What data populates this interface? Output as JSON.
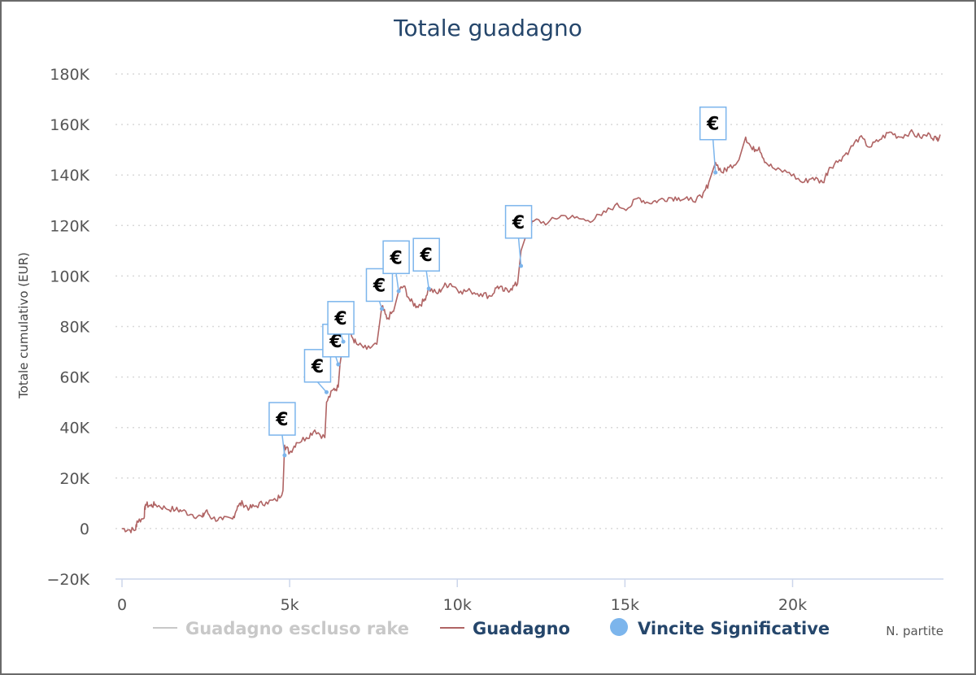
{
  "chart_data": {
    "type": "line",
    "title": "Totale guadagno",
    "xlabel": "N. partite",
    "ylabel": "Totale cumulativo (EUR)",
    "xlim": [
      0,
      24500
    ],
    "ylim": [
      -20000,
      180000
    ],
    "x_ticks": [
      0,
      5000,
      10000,
      15000,
      20000
    ],
    "x_tick_labels": [
      "0",
      "5k",
      "10k",
      "15k",
      "20k"
    ],
    "y_ticks": [
      -20000,
      0,
      20000,
      40000,
      60000,
      80000,
      100000,
      120000,
      140000,
      160000,
      180000
    ],
    "y_tick_labels": [
      "−20K",
      "0",
      "20K",
      "40K",
      "60K",
      "80K",
      "100K",
      "120K",
      "140K",
      "160K",
      "180K"
    ],
    "grid": "horizontal-dotted",
    "legend_position": "bottom",
    "series": [
      {
        "name": "Guadagno escluso rake",
        "color": "#c8c8c8",
        "hidden": true,
        "points": []
      },
      {
        "name": "Guadagno",
        "color": "#b06464",
        "points": [
          [
            0,
            0
          ],
          [
            200,
            -500
          ],
          [
            400,
            -600
          ],
          [
            450,
            3000
          ],
          [
            650,
            4000
          ],
          [
            700,
            9500
          ],
          [
            850,
            9000
          ],
          [
            1000,
            9500
          ],
          [
            1300,
            8000
          ],
          [
            1600,
            7500
          ],
          [
            1800,
            7000
          ],
          [
            2100,
            5500
          ],
          [
            2400,
            4500
          ],
          [
            2500,
            7000
          ],
          [
            2700,
            4000
          ],
          [
            3000,
            3500
          ],
          [
            3300,
            3800
          ],
          [
            3450,
            9000
          ],
          [
            3600,
            10000
          ],
          [
            3800,
            8000
          ],
          [
            4000,
            9000
          ],
          [
            4300,
            10500
          ],
          [
            4600,
            11000
          ],
          [
            4800,
            15000
          ],
          [
            4850,
            33000
          ],
          [
            5000,
            30000
          ],
          [
            5200,
            34000
          ],
          [
            5500,
            36000
          ],
          [
            5750,
            39000
          ],
          [
            6050,
            36000
          ],
          [
            6100,
            50000
          ],
          [
            6300,
            55000
          ],
          [
            6450,
            56000
          ],
          [
            6500,
            65000
          ],
          [
            6600,
            74000
          ],
          [
            6700,
            80000
          ],
          [
            6850,
            76000
          ],
          [
            7000,
            73000
          ],
          [
            7300,
            71000
          ],
          [
            7600,
            73000
          ],
          [
            7750,
            88000
          ],
          [
            7900,
            83000
          ],
          [
            8100,
            86000
          ],
          [
            8250,
            94000
          ],
          [
            8400,
            96000
          ],
          [
            8600,
            90000
          ],
          [
            8800,
            88000
          ],
          [
            9000,
            90000
          ],
          [
            9150,
            95000
          ],
          [
            9400,
            93000
          ],
          [
            9600,
            96000
          ],
          [
            9800,
            97000
          ],
          [
            10100,
            94000
          ],
          [
            10400,
            94000
          ],
          [
            10700,
            93000
          ],
          [
            11000,
            92000
          ],
          [
            11200,
            96000
          ],
          [
            11400,
            94000
          ],
          [
            11600,
            95000
          ],
          [
            11800,
            97000
          ],
          [
            11900,
            110000
          ],
          [
            12100,
            118000
          ],
          [
            12300,
            122000
          ],
          [
            12700,
            121000
          ],
          [
            13100,
            124000
          ],
          [
            13500,
            123000
          ],
          [
            13900,
            122000
          ],
          [
            14300,
            124000
          ],
          [
            14700,
            128000
          ],
          [
            15100,
            127000
          ],
          [
            15400,
            131000
          ],
          [
            15700,
            129000
          ],
          [
            16000,
            130000
          ],
          [
            16300,
            131000
          ],
          [
            16600,
            131000
          ],
          [
            16900,
            130000
          ],
          [
            17300,
            131000
          ],
          [
            17500,
            137000
          ],
          [
            17700,
            145000
          ],
          [
            17900,
            141000
          ],
          [
            18100,
            143000
          ],
          [
            18400,
            146000
          ],
          [
            18600,
            155000
          ],
          [
            18800,
            150000
          ],
          [
            19000,
            151000
          ],
          [
            19200,
            145000
          ],
          [
            19500,
            142000
          ],
          [
            19900,
            141000
          ],
          [
            20300,
            137000
          ],
          [
            20600,
            139000
          ],
          [
            20900,
            137000
          ],
          [
            21100,
            143000
          ],
          [
            21400,
            146000
          ],
          [
            21700,
            150000
          ],
          [
            22000,
            155000
          ],
          [
            22300,
            151000
          ],
          [
            22600,
            154000
          ],
          [
            22900,
            157000
          ],
          [
            23200,
            155000
          ],
          [
            23500,
            157000
          ],
          [
            23800,
            155000
          ],
          [
            24100,
            156000
          ],
          [
            24300,
            154000
          ],
          [
            24400,
            156000
          ]
        ]
      },
      {
        "name": "Vincite Significative",
        "color": "#7cb5ec",
        "type": "flags",
        "flag_symbol": "€",
        "points": [
          [
            4850,
            29000
          ],
          [
            6100,
            54000
          ],
          [
            6450,
            65000
          ],
          [
            6600,
            74000
          ],
          [
            7750,
            87000
          ],
          [
            8250,
            94000
          ],
          [
            9150,
            95000
          ],
          [
            11900,
            104000
          ],
          [
            17700,
            141000
          ]
        ],
        "flag_levels": [
          37000,
          58000,
          68000,
          77000,
          90000,
          101000,
          102000,
          115000,
          154000
        ]
      }
    ]
  }
}
